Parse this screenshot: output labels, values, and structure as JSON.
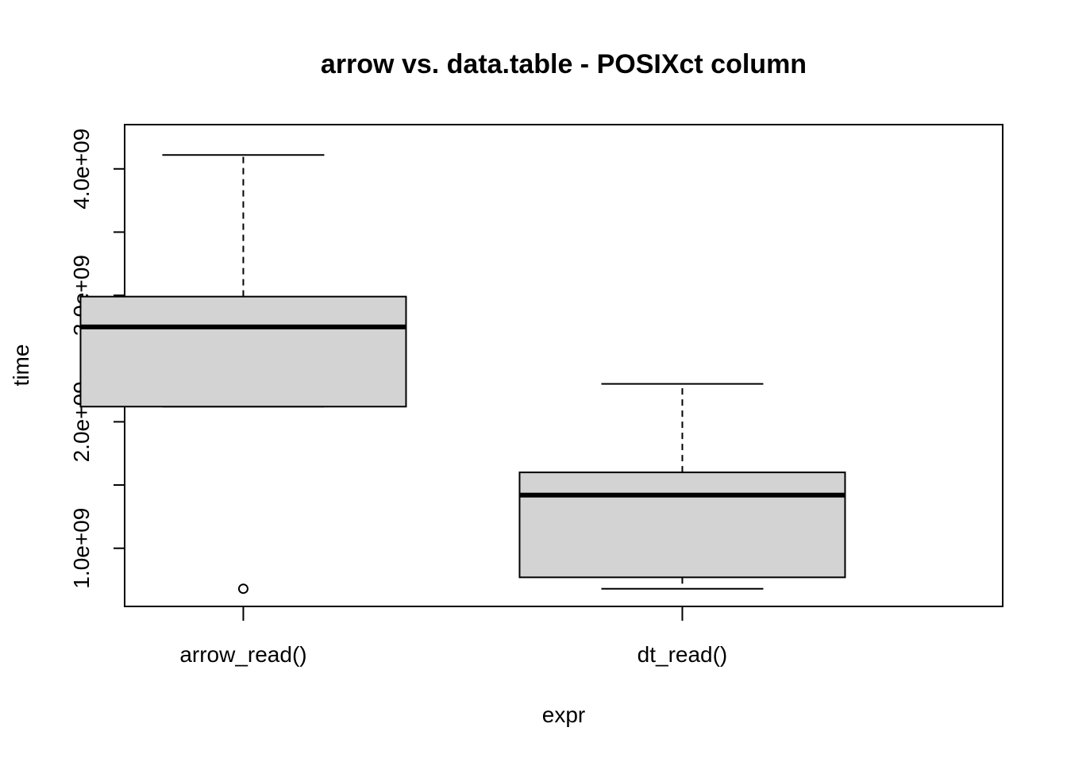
{
  "chart_data": {
    "type": "boxplot",
    "title": "arrow vs. data.table - POSIXct column",
    "xlabel": "expr",
    "ylabel": "time",
    "categories": [
      "arrow_read()",
      "dt_read()"
    ],
    "boxes": [
      {
        "category": "arrow_read()",
        "whisker_low": 2120000000,
        "q1": 2120000000,
        "median": 2750000000,
        "q3": 2990000000,
        "whisker_high": 4110000000,
        "outliers": [
          680000000
        ]
      },
      {
        "category": "dt_read()",
        "whisker_low": 680000000,
        "q1": 770000000,
        "median": 1420000000,
        "q3": 1600000000,
        "whisker_high": 2300000000,
        "outliers": []
      }
    ],
    "y_ticks": [
      1000000000,
      1500000000,
      2000000000,
      2500000000,
      3000000000,
      3500000000,
      4000000000
    ],
    "y_tick_labels": [
      "1.0e+09",
      "",
      "2.0e+09",
      "",
      "3.0e+09",
      "",
      "4.0e+09"
    ],
    "ylim": [
      540000000,
      4350000000
    ],
    "box_fill": "#d3d3d3",
    "grid": false
  }
}
